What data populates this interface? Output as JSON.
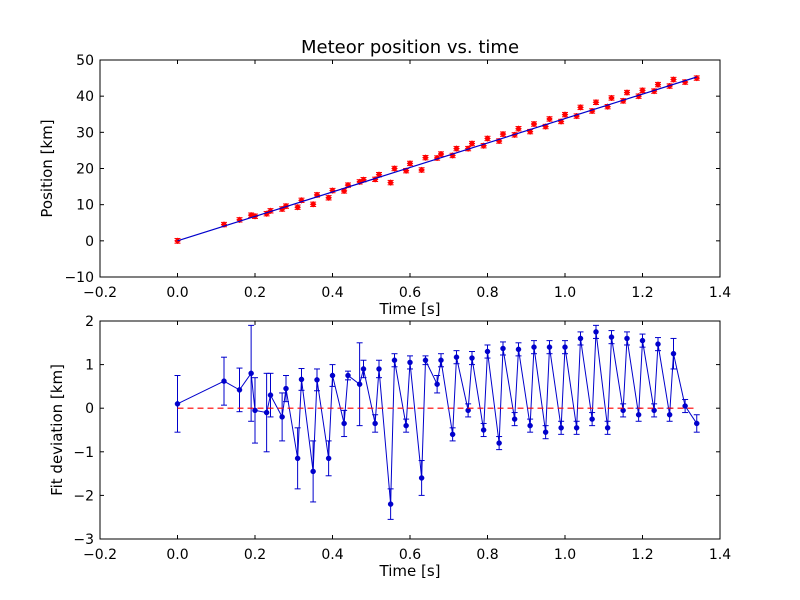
{
  "figure": {
    "title": "Meteor position vs. time"
  },
  "chart_data": [
    {
      "type": "scatter",
      "title": "Meteor position vs. time",
      "xlabel": "Time [s]",
      "ylabel": "Position [km]",
      "xlim": [
        -0.2,
        1.4
      ],
      "ylim": [
        -10,
        50
      ],
      "x_ticks": [
        "−0.2",
        "0.0",
        "0.2",
        "0.4",
        "0.6",
        "0.8",
        "1.0",
        "1.2",
        "1.4"
      ],
      "y_ticks": [
        "−10",
        "0",
        "10",
        "20",
        "30",
        "40",
        "50"
      ],
      "grid": false,
      "series": [
        {
          "kind": "errorbar-markers",
          "color": "#ff0000",
          "marker": "diamond",
          "x": [
            0.0,
            0.12,
            0.16,
            0.19,
            0.2,
            0.23,
            0.24,
            0.27,
            0.28,
            0.31,
            0.32,
            0.35,
            0.36,
            0.39,
            0.4,
            0.43,
            0.44,
            0.47,
            0.48,
            0.51,
            0.52,
            0.55,
            0.56,
            0.59,
            0.6,
            0.63,
            0.64,
            0.67,
            0.68,
            0.71,
            0.72,
            0.75,
            0.76,
            0.79,
            0.8,
            0.83,
            0.84,
            0.87,
            0.88,
            0.91,
            0.92,
            0.95,
            0.96,
            0.99,
            1.0,
            1.03,
            1.04,
            1.07,
            1.08,
            1.11,
            1.12,
            1.15,
            1.16,
            1.19,
            1.2,
            1.23,
            1.24,
            1.27,
            1.28,
            1.31,
            1.34
          ],
          "y": [
            0.0,
            4.5,
            5.8,
            7.1,
            6.8,
            7.5,
            8.3,
            8.8,
            9.6,
            9.3,
            11.2,
            10.1,
            12.7,
            11.9,
            13.9,
            13.8,
            15.4,
            16.3,
            16.9,
            17.0,
            18.3,
            16.1,
            20.0,
            19.4,
            21.4,
            19.6,
            23.0,
            22.9,
            24.0,
            23.6,
            25.5,
            25.5,
            26.9,
            26.3,
            28.3,
            27.6,
            29.5,
            29.3,
            31.0,
            30.2,
            32.3,
            31.6,
            33.7,
            33.0,
            34.9,
            34.5,
            36.9,
            35.9,
            38.3,
            37.1,
            39.5,
            38.7,
            41.0,
            40.0,
            41.6,
            41.4,
            43.2,
            42.8,
            44.6,
            43.9,
            45.0
          ],
          "yerr": [
            0.65,
            0.6,
            0.6,
            0.6,
            0.6,
            0.6,
            0.6,
            0.6,
            0.6,
            0.6,
            0.6,
            0.6,
            0.6,
            0.6,
            0.6,
            0.6,
            0.6,
            0.6,
            0.6,
            0.6,
            0.6,
            0.6,
            0.6,
            0.6,
            0.6,
            0.6,
            0.6,
            0.6,
            0.6,
            0.6,
            0.6,
            0.6,
            0.6,
            0.6,
            0.6,
            0.6,
            0.6,
            0.6,
            0.6,
            0.6,
            0.6,
            0.6,
            0.6,
            0.6,
            0.6,
            0.6,
            0.6,
            0.6,
            0.6,
            0.6,
            0.6,
            0.6,
            0.6,
            0.6,
            0.6,
            0.6,
            0.6,
            0.6,
            0.6,
            0.6,
            0.6
          ]
        },
        {
          "kind": "line",
          "color": "#0000cc",
          "x": [
            0.0,
            1.34
          ],
          "y": [
            0.0,
            45.3
          ]
        }
      ]
    },
    {
      "type": "line",
      "xlabel": "Time [s]",
      "ylabel": "Fit deviation [km]",
      "xlim": [
        -0.2,
        1.4
      ],
      "ylim": [
        -3,
        2
      ],
      "x_ticks": [
        "−0.2",
        "0.0",
        "0.2",
        "0.4",
        "0.6",
        "0.8",
        "1.0",
        "1.2",
        "1.4"
      ],
      "y_ticks": [
        "−3",
        "−2",
        "−1",
        "0",
        "1",
        "2"
      ],
      "grid": false,
      "series": [
        {
          "kind": "line-errorbar-markers",
          "color": "#0000cc",
          "marker": "circle",
          "x": [
            0.0,
            0.12,
            0.16,
            0.19,
            0.2,
            0.23,
            0.24,
            0.27,
            0.28,
            0.31,
            0.32,
            0.35,
            0.36,
            0.39,
            0.4,
            0.43,
            0.44,
            0.47,
            0.48,
            0.51,
            0.52,
            0.55,
            0.56,
            0.59,
            0.6,
            0.63,
            0.64,
            0.67,
            0.68,
            0.71,
            0.72,
            0.75,
            0.76,
            0.79,
            0.8,
            0.83,
            0.84,
            0.87,
            0.88,
            0.91,
            0.92,
            0.95,
            0.96,
            0.99,
            1.0,
            1.03,
            1.04,
            1.07,
            1.08,
            1.11,
            1.12,
            1.15,
            1.16,
            1.19,
            1.2,
            1.23,
            1.24,
            1.27,
            1.28,
            1.31,
            1.34
          ],
          "y": [
            0.1,
            0.62,
            0.42,
            0.8,
            -0.05,
            -0.1,
            0.3,
            -0.2,
            0.45,
            -1.15,
            0.66,
            -1.45,
            0.65,
            -1.15,
            0.75,
            -0.35,
            0.75,
            0.55,
            0.9,
            -0.35,
            0.9,
            -2.2,
            1.1,
            -0.4,
            1.05,
            -1.6,
            1.1,
            0.55,
            1.1,
            -0.6,
            1.17,
            -0.05,
            1.15,
            -0.5,
            1.3,
            -0.8,
            1.37,
            -0.25,
            1.35,
            -0.4,
            1.4,
            -0.55,
            1.4,
            -0.45,
            1.4,
            -0.45,
            1.6,
            -0.25,
            1.75,
            -0.45,
            1.63,
            -0.05,
            1.6,
            -0.15,
            1.55,
            -0.05,
            1.47,
            -0.15,
            1.25,
            0.05,
            -0.35
          ],
          "yerr": [
            0.65,
            0.55,
            0.5,
            1.1,
            0.75,
            0.9,
            0.5,
            0.55,
            0.3,
            0.7,
            0.25,
            0.7,
            0.25,
            0.4,
            0.25,
            0.3,
            0.1,
            0.95,
            0.2,
            0.2,
            0.2,
            0.35,
            0.15,
            0.15,
            0.15,
            0.4,
            0.1,
            0.2,
            0.15,
            0.15,
            0.15,
            0.15,
            0.15,
            0.15,
            0.15,
            0.15,
            0.15,
            0.15,
            0.15,
            0.15,
            0.15,
            0.15,
            0.15,
            0.15,
            0.15,
            0.15,
            0.15,
            0.15,
            0.15,
            0.15,
            0.15,
            0.15,
            0.15,
            0.15,
            0.15,
            0.15,
            0.15,
            0.15,
            0.35,
            0.15,
            0.2
          ]
        },
        {
          "kind": "dashed-line",
          "color": "#ff0000",
          "x": [
            0.0,
            1.34
          ],
          "y": [
            0.0,
            0.0
          ]
        }
      ]
    }
  ]
}
